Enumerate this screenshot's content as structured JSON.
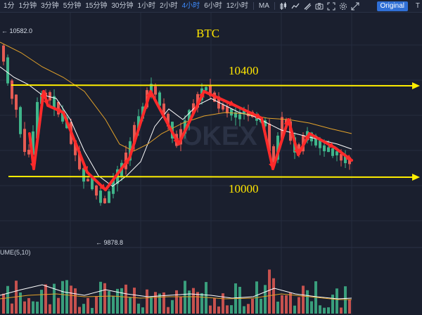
{
  "toolbar": {
    "intervals": [
      {
        "label": "1分",
        "active": false
      },
      {
        "label": "1分钟",
        "active": false
      },
      {
        "label": "3分钟",
        "active": false
      },
      {
        "label": "5分钟",
        "active": false
      },
      {
        "label": "15分钟",
        "active": false
      },
      {
        "label": "30分钟",
        "active": false
      },
      {
        "label": "1小时",
        "active": false
      },
      {
        "label": "2小时",
        "active": false
      },
      {
        "label": "4小时",
        "active": true
      },
      {
        "label": "6小时",
        "active": false
      },
      {
        "label": "12小时",
        "active": false
      }
    ],
    "indicator_label": "MA",
    "tools": [
      "candle-type-icon",
      "indicator-icon",
      "draw-tool-icon",
      "camera-icon",
      "fullscreen-icon",
      "settings-icon",
      "expand-icon"
    ],
    "original_label": "Original",
    "depth_label": "T",
    "accent_color": "#3d8bfd"
  },
  "chart": {
    "title": "BTC",
    "resistance_label": "10400",
    "support_label": "10000",
    "high_label": "← 10582.0",
    "low_label": "← 9878.8",
    "volume_title": "UME(5,10)",
    "watermark": "OKEX",
    "colors": {
      "up": "#3fb58a",
      "down": "#e55b53",
      "arrow": "#ff2a2a",
      "level_line": "#ffee00",
      "ma_fast": "#ffffff",
      "ma_slow": "#e3a22a"
    }
  }
}
